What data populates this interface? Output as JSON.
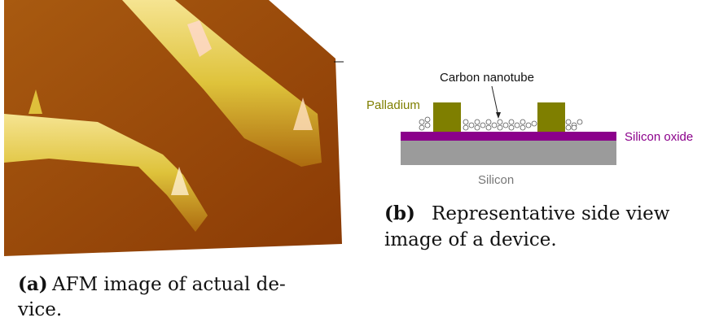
{
  "subfigures": [
    {
      "label": "(a)",
      "caption_lines": [
        "AFM image of actual de-",
        "vice."
      ]
    },
    {
      "label": "(b)",
      "caption_lines": [
        "Representative side view",
        "image of a device."
      ],
      "diagram": {
        "nanotube": "Carbon nanotube",
        "metal": "Palladium",
        "oxide": "Silicon oxide",
        "substrate": "Silicon"
      }
    }
  ]
}
